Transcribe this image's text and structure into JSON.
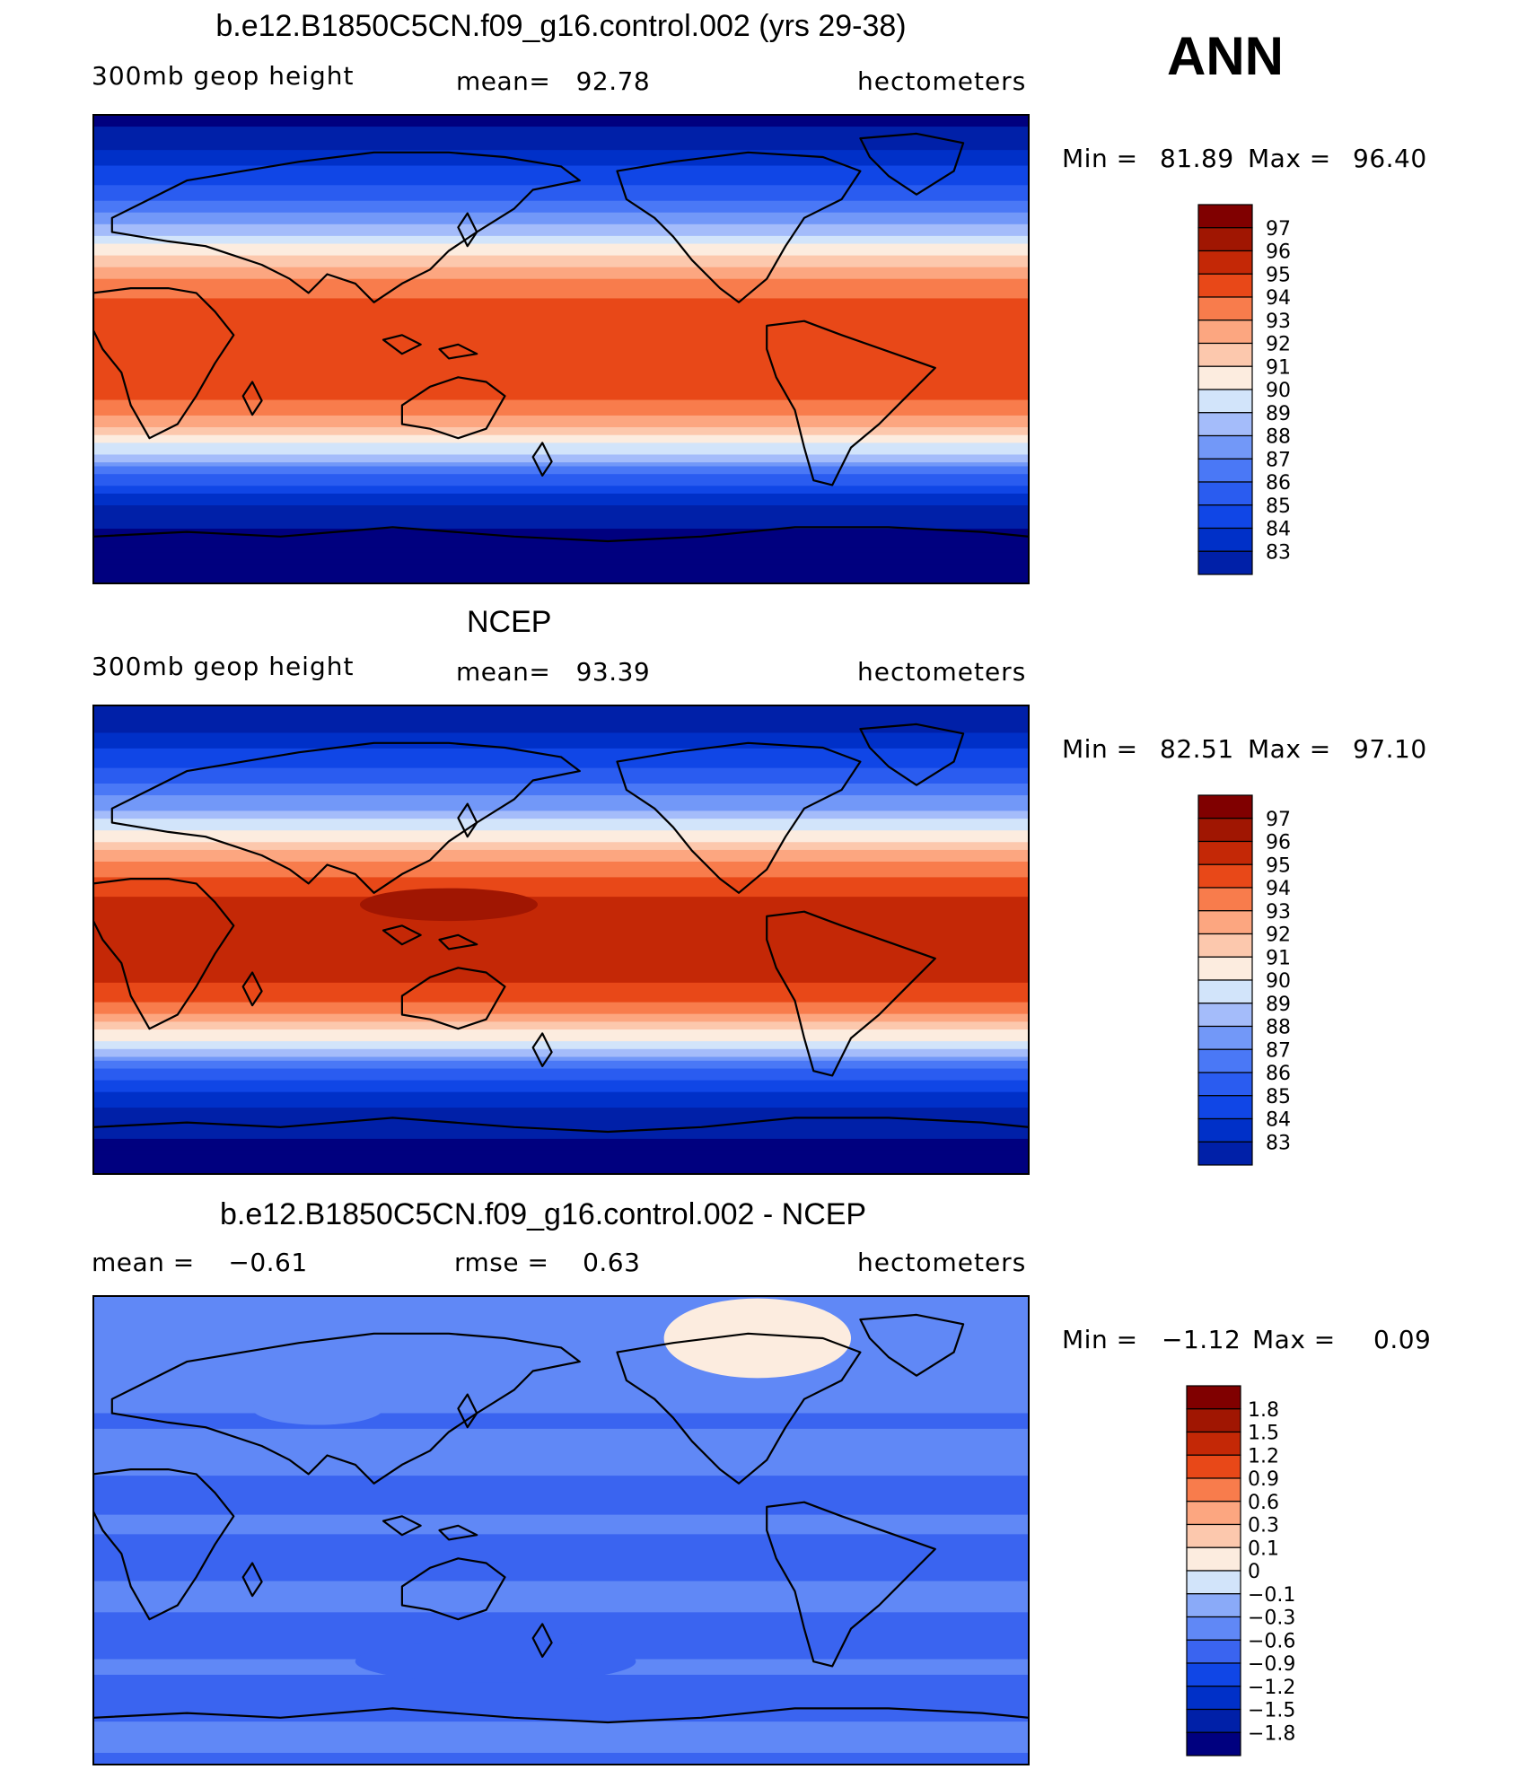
{
  "season": "ANN",
  "panels": [
    {
      "title": "b.e12.B1850C5CN.f09_g16.control.002 (yrs 29-38)",
      "left_label": "300mb geop height",
      "center_label": "mean=   92.78",
      "right_label": "hectometers",
      "min_label": "Min =",
      "min_value": "81.89",
      "max_label": "Max =",
      "max_value": "96.40"
    },
    {
      "title": "NCEP",
      "left_label": "300mb geop height",
      "center_label": "mean=   93.39",
      "right_label": "hectometers",
      "min_label": "Min =",
      "min_value": "82.51",
      "max_label": "Max =",
      "max_value": "97.10"
    },
    {
      "title": "b.e12.B1850C5CN.f09_g16.control.002 - NCEP",
      "left_label": "mean =    −0.61",
      "center_label": "rmse =    0.63",
      "right_label": "hectometers",
      "min_label": "Min =",
      "min_value": "−1.12",
      "max_label": "Max =",
      "max_value": "0.09"
    }
  ],
  "chart_data": [
    {
      "type": "heatmap",
      "title": "b.e12.B1850C5CN.f09_g16.control.002 (yrs 29-38)",
      "variable": "300mb geop height",
      "units": "hectometers",
      "mean": 92.78,
      "min": 81.89,
      "max": 96.4,
      "lat_bands_north_to_south": [
        {
          "lat": 90,
          "value": 82.5
        },
        {
          "lat": 80,
          "value": 83.5
        },
        {
          "lat": 70,
          "value": 85.0
        },
        {
          "lat": 60,
          "value": 86.5
        },
        {
          "lat": 50,
          "value": 88.5
        },
        {
          "lat": 40,
          "value": 91.0
        },
        {
          "lat": 30,
          "value": 93.5
        },
        {
          "lat": 20,
          "value": 95.0
        },
        {
          "lat": 10,
          "value": 95.8
        },
        {
          "lat": 0,
          "value": 96.0
        },
        {
          "lat": -10,
          "value": 95.8
        },
        {
          "lat": -20,
          "value": 95.0
        },
        {
          "lat": -30,
          "value": 93.0
        },
        {
          "lat": -40,
          "value": 90.0
        },
        {
          "lat": -50,
          "value": 86.5
        },
        {
          "lat": -60,
          "value": 84.0
        },
        {
          "lat": -70,
          "value": 82.8
        },
        {
          "lat": -80,
          "value": 82.2
        },
        {
          "lat": -90,
          "value": 82.0
        }
      ],
      "colorbar_levels": [
        "97",
        "96",
        "95",
        "94",
        "93",
        "92",
        "91",
        "90",
        "89",
        "88",
        "87",
        "86",
        "85",
        "84",
        "83"
      ]
    },
    {
      "type": "heatmap",
      "title": "NCEP",
      "variable": "300mb geop height",
      "units": "hectometers",
      "mean": 93.39,
      "min": 82.51,
      "max": 97.1,
      "lat_bands_north_to_south": [
        {
          "lat": 90,
          "value": 83.0
        },
        {
          "lat": 80,
          "value": 84.0
        },
        {
          "lat": 70,
          "value": 85.5
        },
        {
          "lat": 60,
          "value": 87.0
        },
        {
          "lat": 50,
          "value": 89.0
        },
        {
          "lat": 40,
          "value": 91.5
        },
        {
          "lat": 30,
          "value": 94.0
        },
        {
          "lat": 20,
          "value": 95.8
        },
        {
          "lat": 10,
          "value": 96.3
        },
        {
          "lat": 0,
          "value": 96.5
        },
        {
          "lat": -10,
          "value": 96.3
        },
        {
          "lat": -20,
          "value": 95.8
        },
        {
          "lat": -30,
          "value": 93.5
        },
        {
          "lat": -40,
          "value": 90.5
        },
        {
          "lat": -50,
          "value": 87.0
        },
        {
          "lat": -60,
          "value": 84.5
        },
        {
          "lat": -70,
          "value": 83.3
        },
        {
          "lat": -80,
          "value": 82.8
        },
        {
          "lat": -90,
          "value": 82.6
        }
      ],
      "annotations": [
        {
          "region": "western Pacific warm pool",
          "value": 97.0
        }
      ],
      "colorbar_levels": [
        "97",
        "96",
        "95",
        "94",
        "93",
        "92",
        "91",
        "90",
        "89",
        "88",
        "87",
        "86",
        "85",
        "84",
        "83"
      ]
    },
    {
      "type": "heatmap",
      "title": "b.e12.B1850C5CN.f09_g16.control.002 - NCEP",
      "units": "hectometers",
      "mean": -0.61,
      "rmse": 0.63,
      "min": -1.12,
      "max": 0.09,
      "lat_bands_north_to_south": [
        {
          "lat": 90,
          "value": -0.4
        },
        {
          "lat": 60,
          "value": -0.5
        },
        {
          "lat": 30,
          "value": -0.5
        },
        {
          "lat": 0,
          "value": -0.7
        },
        {
          "lat": -30,
          "value": -0.6
        },
        {
          "lat": -50,
          "value": -0.7
        },
        {
          "lat": -90,
          "value": -0.6
        }
      ],
      "annotations": [
        {
          "region": "northern Canada",
          "value": 0.05
        }
      ],
      "colorbar_levels": [
        "1.8",
        "1.5",
        "1.2",
        "0.9",
        "0.6",
        "0.3",
        "0.1",
        "0",
        "−0.1",
        "−0.3",
        "−0.6",
        "−0.9",
        "−1.2",
        "−1.5",
        "−1.8"
      ]
    }
  ]
}
